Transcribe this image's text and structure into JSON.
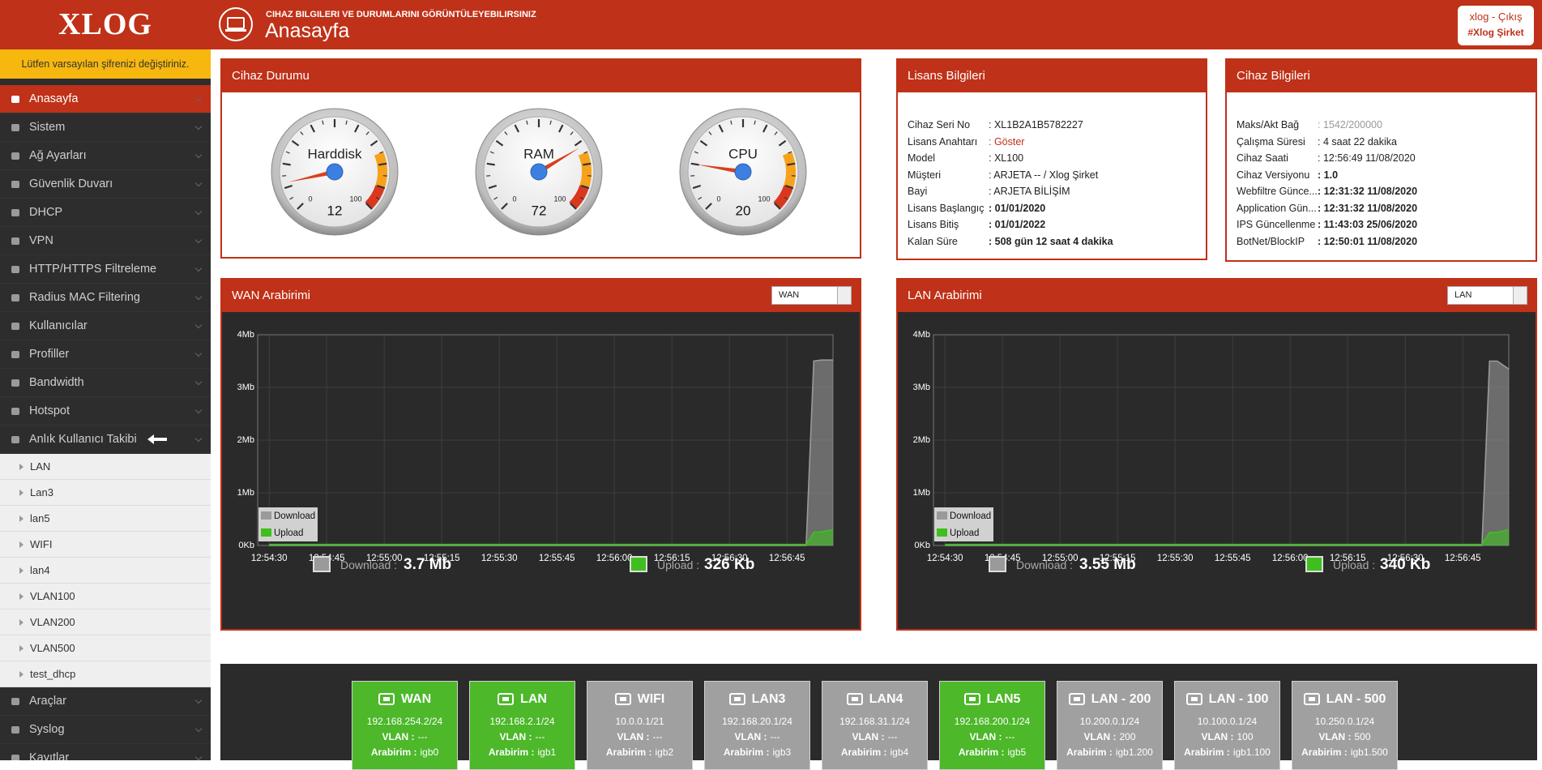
{
  "header": {
    "logo": "XLOG",
    "subtitle": "CIHAZ BILGILERI VE DURUMLARINI GÖRÜNTÜLEYEBILIRSINIZ",
    "title": "Anasayfa",
    "user": "xlog",
    "separator": "-",
    "logout": "Çıkış",
    "company": "#Xlog Şirket"
  },
  "sidebar": {
    "warning": "Lütfen varsayılan şifrenizi değiştiriniz.",
    "menu": [
      "Anasayfa",
      "Sistem",
      "Ağ Ayarları",
      "Güvenlik Duvarı",
      "DHCP",
      "VPN",
      "HTTP/HTTPS Filtreleme",
      "Radius MAC Filtering",
      "Kullanıcılar",
      "Profiller",
      "Bandwidth",
      "Hotspot",
      "Anlık Kullanıcı Takibi"
    ],
    "submenu": [
      "LAN",
      "Lan3",
      "lan5",
      "WIFI",
      "lan4",
      "VLAN100",
      "VLAN200",
      "VLAN500",
      "test_dhcp"
    ],
    "menu_after": [
      "Araçlar",
      "Syslog",
      "Kayıtlar"
    ]
  },
  "device_status": {
    "title": "Cihaz Durumu",
    "gauges": [
      {
        "label": "Harddisk",
        "value": 12,
        "min": 0,
        "max": 100
      },
      {
        "label": "RAM",
        "value": 72,
        "min": 0,
        "max": 100
      },
      {
        "label": "CPU",
        "value": 20,
        "min": 0,
        "max": 100
      }
    ]
  },
  "license": {
    "title": "Lisans Bilgileri",
    "rows": [
      [
        "Cihaz Seri No",
        "XL1B2A1B5782227"
      ],
      [
        "Lisans Anahtarı",
        "Göster"
      ],
      [
        "Model",
        "XL100"
      ],
      [
        "Müşteri",
        "ARJETA -- / Xlog Şirket"
      ],
      [
        "Bayi",
        "ARJETA BİLİŞİM"
      ],
      [
        "Lisans Başlangıç",
        "01/01/2020"
      ],
      [
        "Lisans Bitiş",
        "01/01/2022"
      ],
      [
        "Kalan Süre",
        "508 gün 12 saat 4 dakika"
      ]
    ]
  },
  "device_info": {
    "title": "Cihaz Bilgileri",
    "rows": [
      [
        "Maks/Akt Bağ",
        "1542/200000"
      ],
      [
        "Çalışma Süresi",
        "4 saat 22 dakika"
      ],
      [
        "Cihaz Saati",
        "12:56:49 11/08/2020"
      ],
      [
        "Cihaz Versiyonu",
        "1.0"
      ],
      [
        "Webfiltre Günce...",
        "12:31:32 11/08/2020"
      ],
      [
        "Application Gün...",
        "12:31:32 11/08/2020"
      ],
      [
        "IPS Güncellenme",
        "11:43:03 25/06/2020"
      ],
      [
        "BotNet/BlockIP",
        "12:50:01 11/08/2020"
      ]
    ]
  },
  "wan": {
    "title": "WAN Arabirimi",
    "select": "WAN",
    "chart_data": {
      "type": "area",
      "x": [
        "12:54:30",
        "12:54:45",
        "12:55:00",
        "12:55:15",
        "12:55:30",
        "12:55:45",
        "12:56:00",
        "12:56:15",
        "12:56:30",
        "12:56:45",
        "12:56:50",
        "12:56:52",
        "12:56:54",
        "12:56:57"
      ],
      "xlim": [
        "12:54:27",
        "12:56:57"
      ],
      "xticks": [
        "12:54:30",
        "12:54:45",
        "12:55:00",
        "12:55:15",
        "12:55:30",
        "12:55:45",
        "12:56:00",
        "12:56:15",
        "12:56:30",
        "12:56:45"
      ],
      "ylim": [
        0,
        4
      ],
      "yticks": [
        {
          "value": 0,
          "label": "0Kb"
        },
        {
          "value": 1,
          "label": "1Mb"
        },
        {
          "value": 2,
          "label": "2Mb"
        },
        {
          "value": 3,
          "label": "3Mb"
        },
        {
          "value": 4,
          "label": "4Mb"
        }
      ],
      "grid": true,
      "legend": "lower left",
      "series": [
        {
          "name": "Download",
          "color": "#9a9a9a",
          "values": [
            0,
            0,
            0,
            0,
            0,
            0,
            0,
            0,
            0,
            0,
            0,
            3.5,
            3.52,
            3.52
          ]
        },
        {
          "name": "Upload",
          "color": "#3fbf1f",
          "values": [
            0.02,
            0.02,
            0.02,
            0.02,
            0.02,
            0.02,
            0.02,
            0.02,
            0.02,
            0.02,
            0.02,
            0.25,
            0.26,
            0.3
          ]
        }
      ]
    },
    "summary": {
      "download_label": "Download :",
      "download": "3.7 Mb",
      "upload_label": "Upload :",
      "upload": "326 Kb"
    }
  },
  "lan": {
    "title": "LAN Arabirimi",
    "select": "LAN",
    "chart_data": {
      "type": "area",
      "x": [
        "12:54:30",
        "12:54:45",
        "12:55:00",
        "12:55:15",
        "12:55:30",
        "12:55:45",
        "12:56:00",
        "12:56:15",
        "12:56:30",
        "12:56:45",
        "12:56:50",
        "12:56:52",
        "12:56:54",
        "12:56:57"
      ],
      "xlim": [
        "12:54:27",
        "12:56:57"
      ],
      "xticks": [
        "12:54:30",
        "12:54:45",
        "12:55:00",
        "12:55:15",
        "12:55:30",
        "12:55:45",
        "12:56:00",
        "12:56:15",
        "12:56:30",
        "12:56:45"
      ],
      "ylim": [
        0,
        4
      ],
      "yticks": [
        {
          "value": 0,
          "label": "0Kb"
        },
        {
          "value": 1,
          "label": "1Mb"
        },
        {
          "value": 2,
          "label": "2Mb"
        },
        {
          "value": 3,
          "label": "3Mb"
        },
        {
          "value": 4,
          "label": "4Mb"
        }
      ],
      "grid": true,
      "legend": "lower left",
      "series": [
        {
          "name": "Download",
          "color": "#9a9a9a",
          "values": [
            0,
            0,
            0,
            0,
            0,
            0,
            0,
            0,
            0,
            0,
            0,
            3.5,
            3.5,
            3.35
          ]
        },
        {
          "name": "Upload",
          "color": "#3fbf1f",
          "values": [
            0.02,
            0.02,
            0.02,
            0.02,
            0.02,
            0.02,
            0.02,
            0.02,
            0.02,
            0.02,
            0.02,
            0.25,
            0.25,
            0.3
          ]
        }
      ]
    },
    "summary": {
      "download_label": "Download :",
      "download": "3.55 Mb",
      "upload_label": "Upload :",
      "upload": "340 Kb"
    }
  },
  "interfaces": [
    {
      "name": "WAN",
      "ip": "192.168.254.2/24",
      "vlan_label": "VLAN :",
      "vlan": "---",
      "iface_label": "Arabirim :",
      "iface": "igb0",
      "color": "#4cb82a"
    },
    {
      "name": "LAN",
      "ip": "192.168.2.1/24",
      "vlan_label": "VLAN :",
      "vlan": "---",
      "iface_label": "Arabirim :",
      "iface": "igb1",
      "color": "#4cb82a"
    },
    {
      "name": "WIFI",
      "ip": "10.0.0.1/21",
      "vlan_label": "VLAN :",
      "vlan": "---",
      "iface_label": "Arabirim :",
      "iface": "igb2",
      "color": "#a0a0a0"
    },
    {
      "name": "LAN3",
      "ip": "192.168.20.1/24",
      "vlan_label": "VLAN :",
      "vlan": "---",
      "iface_label": "Arabirim :",
      "iface": "igb3",
      "color": "#a0a0a0"
    },
    {
      "name": "LAN4",
      "ip": "192.168.31.1/24",
      "vlan_label": "VLAN :",
      "vlan": "---",
      "iface_label": "Arabirim :",
      "iface": "igb4",
      "color": "#a0a0a0"
    },
    {
      "name": "LAN5",
      "ip": "192.168.200.1/24",
      "vlan_label": "VLAN :",
      "vlan": "---",
      "iface_label": "Arabirim :",
      "iface": "igb5",
      "color": "#4cb82a"
    },
    {
      "name": "LAN - 200",
      "ip": "10.200.0.1/24",
      "vlan_label": "VLAN :",
      "vlan": "200",
      "iface_label": "Arabirim :",
      "iface": "igb1.200",
      "color": "#a0a0a0"
    },
    {
      "name": "LAN - 100",
      "ip": "10.100.0.1/24",
      "vlan_label": "VLAN :",
      "vlan": "100",
      "iface_label": "Arabirim :",
      "iface": "igb1.100",
      "color": "#a0a0a0"
    },
    {
      "name": "LAN - 500",
      "ip": "10.250.0.1/24",
      "vlan_label": "VLAN :",
      "vlan": "500",
      "iface_label": "Arabirim :",
      "iface": "igb1.500",
      "color": "#a0a0a0"
    }
  ]
}
